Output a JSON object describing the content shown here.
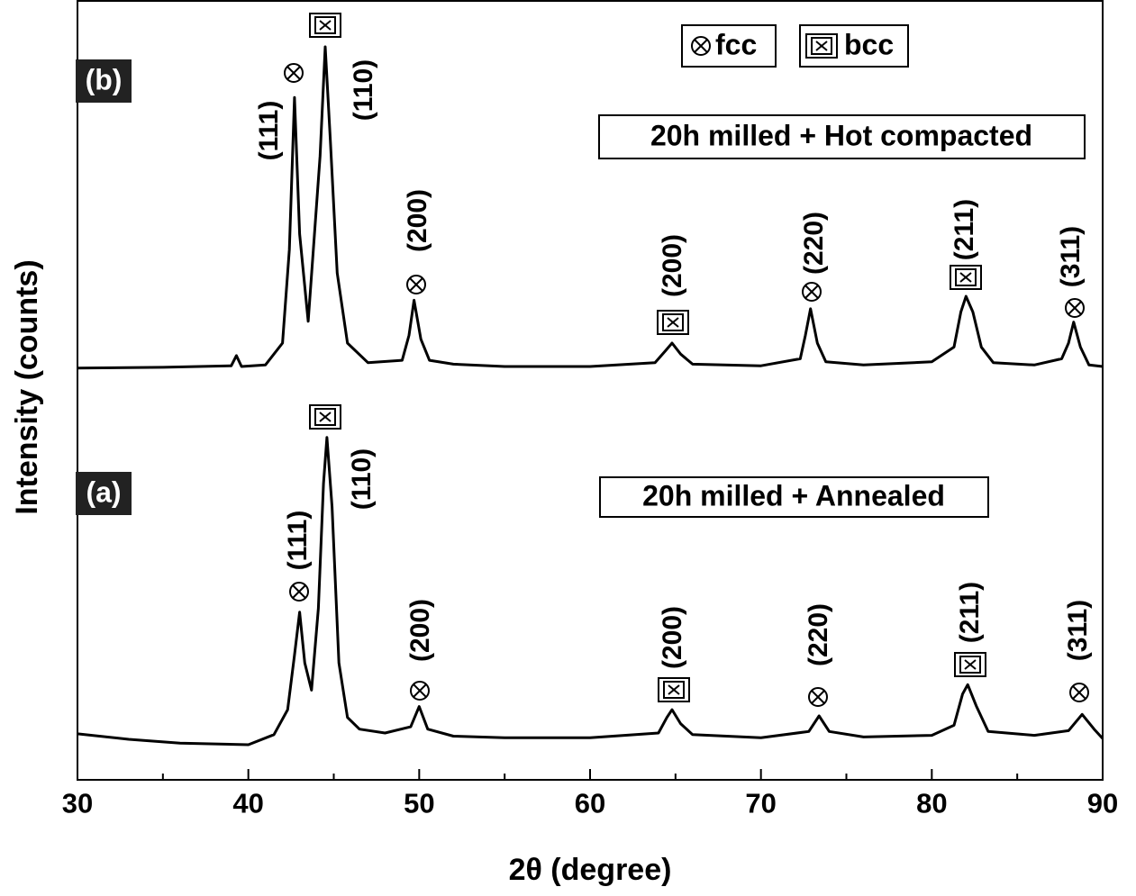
{
  "chart_data": {
    "type": "line",
    "x_label": "2θ (degree)",
    "y_label": "Intensity (counts)",
    "xlim": [
      30,
      90
    ],
    "xticks": [
      30,
      40,
      50,
      60,
      70,
      80,
      90
    ],
    "xminor_ticks": [
      35,
      45,
      55,
      65,
      75,
      85
    ],
    "ylim": [
      0,
      100
    ],
    "legend": {
      "fcc": "fcc",
      "bcc": "bcc"
    },
    "series": [
      {
        "name": "20h milled + Hot compacted",
        "tag": "(b)",
        "color": "#000000",
        "x": [
          30,
          35,
          39,
          39.3,
          39.6,
          41,
          42,
          42.4,
          42.7,
          43.0,
          43.5,
          44.2,
          44.5,
          44.8,
          45.2,
          45.8,
          47,
          49,
          49.4,
          49.7,
          50.1,
          50.6,
          52,
          55,
          60,
          63.8,
          64.4,
          64.8,
          65.3,
          66,
          70,
          72.3,
          72.6,
          72.9,
          73.3,
          73.8,
          76,
          80,
          81.3,
          81.7,
          82,
          82.4,
          82.9,
          83.6,
          86,
          87.6,
          88,
          88.3,
          88.7,
          89.2,
          90
        ],
        "values": [
          52.8,
          52.9,
          53.1,
          54.4,
          53.0,
          53.2,
          56,
          68,
          87.5,
          70,
          58.8,
          80,
          94,
          82,
          65,
          56,
          53.5,
          53.8,
          57,
          61.5,
          56.5,
          53.8,
          53.3,
          53,
          53,
          53.5,
          55,
          56,
          54.6,
          53.3,
          53.1,
          54,
          57,
          60.4,
          56,
          53.6,
          53.2,
          53.6,
          55.5,
          60,
          62,
          60,
          55.5,
          53.5,
          53.2,
          54,
          56,
          58.7,
          55.5,
          53.2,
          53
        ],
        "peak_labels": [
          "(111)",
          "(110)",
          "(200)",
          "(200)",
          "(220)",
          "(211)",
          "(311)"
        ]
      },
      {
        "name": "20h milled + Annealed",
        "tag": "(a)",
        "color": "#000000",
        "x": [
          30,
          33,
          36,
          40,
          41.5,
          42.3,
          42.7,
          43,
          43.3,
          43.7,
          44.1,
          44.4,
          44.6,
          44.9,
          45.3,
          45.8,
          46.5,
          48,
          49.5,
          50,
          50.5,
          52,
          55,
          60,
          64,
          64.5,
          64.8,
          65.3,
          66,
          70,
          72.8,
          73.4,
          74,
          76,
          80,
          81.3,
          81.8,
          82.1,
          82.6,
          83.3,
          86,
          88,
          88.8,
          89.5,
          90
        ],
        "values": [
          5.9,
          5.2,
          4.7,
          4.5,
          5.8,
          9,
          16,
          21.5,
          15,
          11.5,
          22,
          38,
          43.9,
          35,
          15,
          8,
          6.5,
          6,
          6.8,
          9.4,
          6.5,
          5.6,
          5.4,
          5.4,
          6,
          8,
          9,
          7.2,
          5.8,
          5.4,
          6.2,
          8.2,
          6.2,
          5.5,
          5.7,
          7,
          11,
          12.2,
          9.5,
          6.2,
          5.7,
          6.3,
          8.4,
          6.5,
          5.3
        ],
        "peak_labels": [
          "(111)",
          "(110)",
          "(200)",
          "(200)",
          "(220)",
          "(211)",
          "(311)"
        ]
      }
    ]
  }
}
